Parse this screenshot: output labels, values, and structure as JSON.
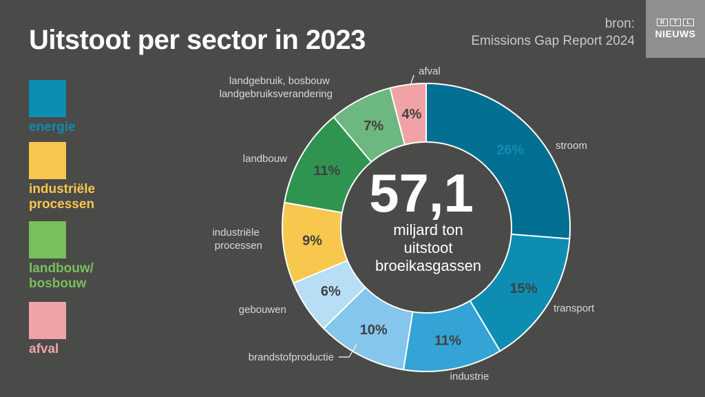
{
  "title": "Uitstoot per sector in 2023",
  "source": {
    "line1": "bron:",
    "line2": "Emissions Gap Report 2024"
  },
  "logo": {
    "letters": [
      "R",
      "T",
      "L"
    ],
    "word": "NIEUWS"
  },
  "legend": [
    {
      "label": "energie",
      "color": "#0e8db3"
    },
    {
      "label": "industriële processen",
      "color": "#f8c74e"
    },
    {
      "label": "landbouw/ bosbouw",
      "color": "#78c05a"
    },
    {
      "label": "afval",
      "color": "#f0a3a7"
    }
  ],
  "center": {
    "value": "57,1",
    "line1": "miljard ton",
    "line2": "uitstoot",
    "line3": "broeikasgassen"
  },
  "chart_data": {
    "type": "pie",
    "title": "Uitstoot per sector in 2023",
    "total": "57,1 miljard ton uitstoot broeikasgassen",
    "slices": [
      {
        "name": "stroom",
        "value": 26,
        "label": "26%",
        "color": "#006f92",
        "label_color": "#0e8db3"
      },
      {
        "name": "transport",
        "value": 15,
        "label": "15%",
        "color": "#0e8db3",
        "label_color": "#404040"
      },
      {
        "name": "industrie",
        "value": 11,
        "label": "11%",
        "color": "#34a4d6",
        "label_color": "#404040"
      },
      {
        "name": "brandstofproductie",
        "value": 10,
        "label": "10%",
        "color": "#84c6ec",
        "label_color": "#404040"
      },
      {
        "name": "gebouwen",
        "value": 6,
        "label": "6%",
        "color": "#b7def5",
        "label_color": "#404040"
      },
      {
        "name": "industriële processen",
        "value": 9,
        "label": "9%",
        "color": "#f8c74e",
        "label_color": "#404040"
      },
      {
        "name": "landbouw",
        "value": 11,
        "label": "11%",
        "color": "#2e9450",
        "label_color": "#404040"
      },
      {
        "name": "landgebruik, bosbouw landgebruiksverandering",
        "value": 7,
        "label": "7%",
        "color": "#6db780",
        "label_color": "#404040"
      },
      {
        "name": "afval",
        "value": 4,
        "label": "4%",
        "color": "#f0a3a7",
        "label_color": "#404040"
      }
    ]
  }
}
